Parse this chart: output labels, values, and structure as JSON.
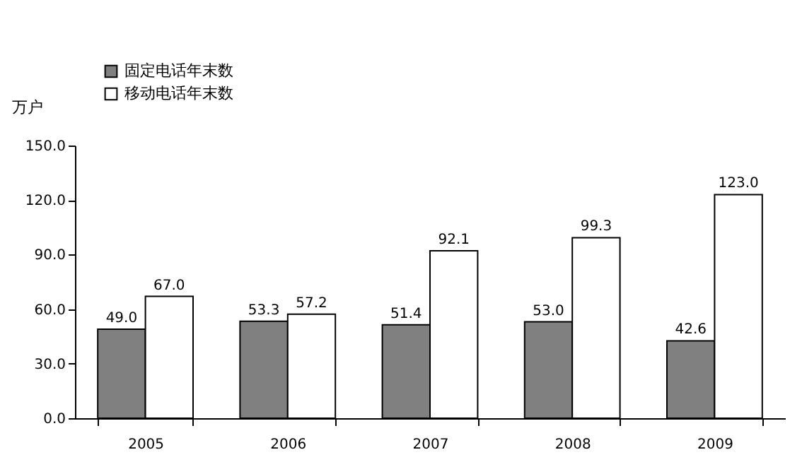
{
  "chart_data": {
    "type": "bar",
    "ylabel": "万户",
    "categories": [
      "2005",
      "2006",
      "2007",
      "2008",
      "2009"
    ],
    "series": [
      {
        "name": "固定电话年末数",
        "color": "#808080",
        "values": [
          49.0,
          53.3,
          51.4,
          53.0,
          42.6
        ],
        "value_labels": [
          "49.0",
          "53.3",
          "51.4",
          "53.0",
          "42.6"
        ]
      },
      {
        "name": "移动电话年末数",
        "color": "#ffffff",
        "values": [
          67.0,
          57.2,
          92.1,
          99.3,
          123.0
        ],
        "value_labels": [
          "67.0",
          "57.2",
          "92.1",
          "99.3",
          "123.0"
        ]
      }
    ],
    "ylim": [
      0,
      150
    ],
    "yticks": [
      {
        "value": 0,
        "label": "0.0"
      },
      {
        "value": 30,
        "label": "30.0"
      },
      {
        "value": 60,
        "label": "60.0"
      },
      {
        "value": 90,
        "label": "90.0"
      },
      {
        "value": 120,
        "label": "120.0"
      },
      {
        "value": 150,
        "label": "150.0"
      }
    ],
    "grid": false,
    "legend": "top left"
  }
}
